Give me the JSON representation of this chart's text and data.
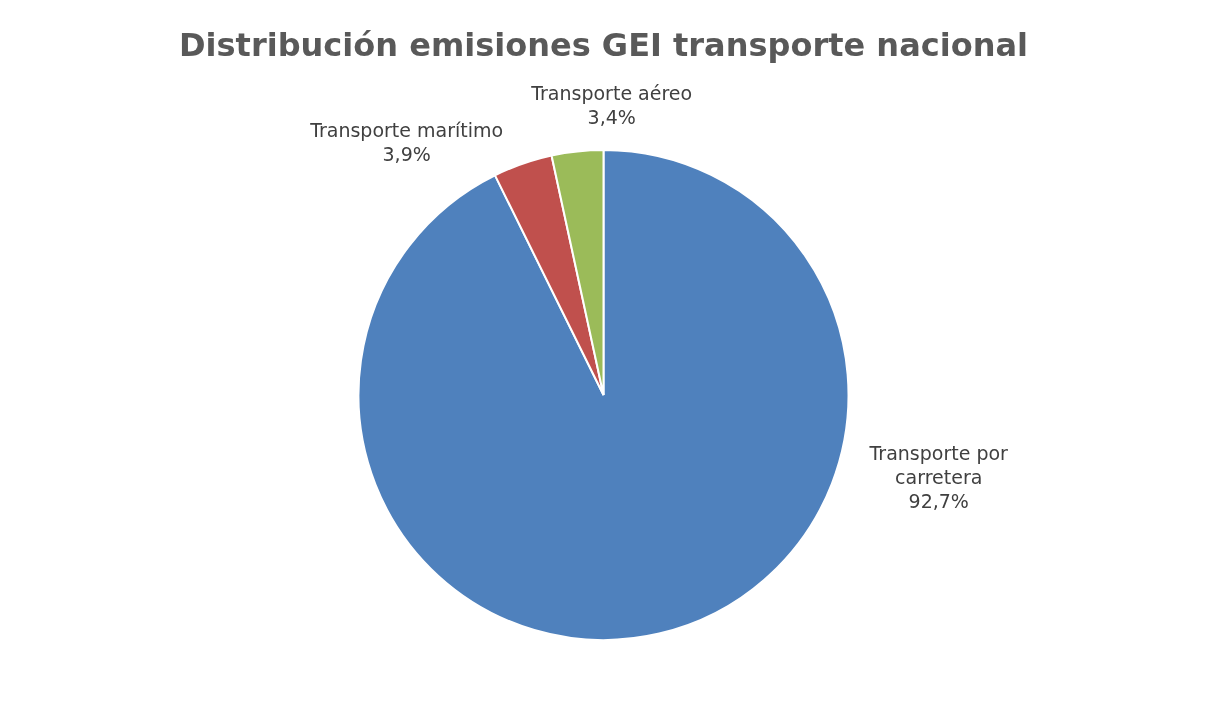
{
  "chart_data": {
    "type": "pie",
    "title": "Distribución emisiones GEI transporte nacional",
    "categories": [
      "Transporte por carretera",
      "Transporte marítimo",
      "Transporte aéreo"
    ],
    "values": [
      92.7,
      3.9,
      3.4
    ],
    "colors": [
      "#4f81bd",
      "#c0504d",
      "#9bbb59"
    ],
    "value_labels": [
      "92,7%",
      "3,9%",
      "3,4%"
    ]
  }
}
